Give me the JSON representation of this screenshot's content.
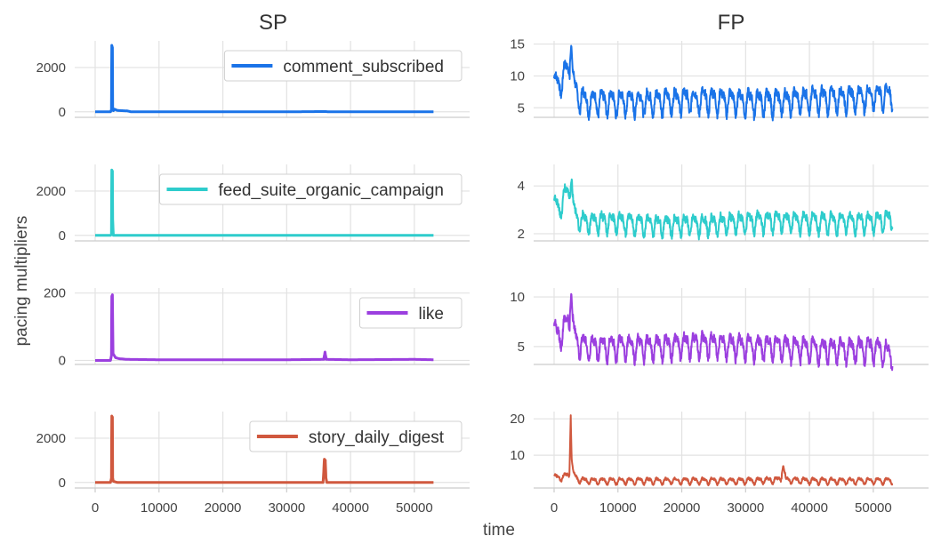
{
  "chart_data": {
    "type": "line",
    "column_titles": [
      "SP",
      "FP"
    ],
    "xlabel": "time",
    "ylabel": "pacing multipliers",
    "xlim": [
      0,
      53500
    ],
    "x_ticks": [
      0,
      10000,
      20000,
      30000,
      40000,
      50000
    ],
    "x_tick_labels": [
      "0",
      "10000",
      "20000",
      "30000",
      "40000",
      "50000"
    ],
    "grid": true,
    "legend_placement": "top-right (left column panels only)",
    "series": [
      {
        "name": "comment_subscribed",
        "color": "#1a73e8",
        "SP": {
          "ylim": [
            -250,
            3200
          ],
          "yticks": [
            0,
            2000
          ],
          "points": [
            [
              0,
              0
            ],
            [
              2400,
              0
            ],
            [
              2550,
              100
            ],
            [
              2600,
              3000
            ],
            [
              2700,
              2900
            ],
            [
              2750,
              150
            ],
            [
              2850,
              50
            ],
            [
              3000,
              120
            ],
            [
              3500,
              60
            ],
            [
              4200,
              50
            ],
            [
              5000,
              40
            ],
            [
              5600,
              0
            ],
            [
              10000,
              0
            ],
            [
              20000,
              0
            ],
            [
              30000,
              0
            ],
            [
              36000,
              12
            ],
            [
              36500,
              0
            ],
            [
              45000,
              0
            ],
            [
              53000,
              0
            ]
          ]
        },
        "FP": {
          "ylim": [
            3.5,
            15.5
          ],
          "yticks": [
            5,
            10,
            15
          ],
          "period": 1440,
          "amplitude": 1.6,
          "points": [
            [
              0,
              9
            ],
            [
              800,
              8.5
            ],
            [
              1600,
              10.5
            ],
            [
              2400,
              11
            ],
            [
              2700,
              15
            ],
            [
              3000,
              9
            ],
            [
              3600,
              7
            ],
            [
              5000,
              6
            ],
            [
              10000,
              6
            ],
            [
              15000,
              6
            ],
            [
              20000,
              6.3
            ],
            [
              25000,
              6.3
            ],
            [
              30000,
              6
            ],
            [
              35000,
              6
            ],
            [
              40000,
              6.4
            ],
            [
              45000,
              6.5
            ],
            [
              50000,
              6.8
            ],
            [
              53000,
              7
            ]
          ]
        }
      },
      {
        "name": "feed_suite_organic_campaign",
        "color": "#2ecccc",
        "SP": {
          "ylim": [
            -250,
            3200
          ],
          "yticks": [
            0,
            2000
          ],
          "points": [
            [
              0,
              0
            ],
            [
              2400,
              0
            ],
            [
              2550,
              50
            ],
            [
              2600,
              2950
            ],
            [
              2700,
              2900
            ],
            [
              2750,
              700
            ],
            [
              2850,
              0
            ],
            [
              10000,
              0
            ],
            [
              20000,
              0
            ],
            [
              30000,
              0
            ],
            [
              40000,
              0
            ],
            [
              53000,
              0
            ]
          ]
        },
        "FP": {
          "ylim": [
            1.7,
            4.9
          ],
          "yticks": [
            2,
            4
          ],
          "period": 1440,
          "amplitude": 0.35,
          "points": [
            [
              0,
              3.3
            ],
            [
              800,
              3.0
            ],
            [
              1600,
              3.6
            ],
            [
              2400,
              3.8
            ],
            [
              2700,
              4.7
            ],
            [
              3000,
              3.0
            ],
            [
              3600,
              2.6
            ],
            [
              5000,
              2.5
            ],
            [
              10000,
              2.5
            ],
            [
              15000,
              2.4
            ],
            [
              20000,
              2.4
            ],
            [
              25000,
              2.4
            ],
            [
              30000,
              2.5
            ],
            [
              35000,
              2.55
            ],
            [
              40000,
              2.5
            ],
            [
              45000,
              2.5
            ],
            [
              50000,
              2.5
            ],
            [
              53000,
              2.6
            ]
          ]
        }
      },
      {
        "name": "like",
        "color": "#9b3fdf",
        "SP": {
          "ylim": [
            -12,
            215
          ],
          "yticks": [
            0,
            200
          ],
          "points": [
            [
              0,
              0
            ],
            [
              2400,
              0
            ],
            [
              2550,
              15
            ],
            [
              2600,
              190
            ],
            [
              2700,
              195
            ],
            [
              2800,
              20
            ],
            [
              3200,
              8
            ],
            [
              3800,
              5
            ],
            [
              5000,
              3
            ],
            [
              10000,
              2
            ],
            [
              20000,
              2
            ],
            [
              30000,
              2
            ],
            [
              35800,
              3
            ],
            [
              36000,
              25
            ],
            [
              36200,
              3
            ],
            [
              40000,
              2
            ],
            [
              50000,
              3
            ],
            [
              53000,
              2
            ]
          ]
        },
        "FP": {
          "ylim": [
            3.2,
            10.9
          ],
          "yticks": [
            5,
            10
          ],
          "period": 1440,
          "amplitude": 1.0,
          "points": [
            [
              0,
              6.5
            ],
            [
              800,
              6
            ],
            [
              1600,
              7
            ],
            [
              2400,
              7.5
            ],
            [
              2700,
              10.5
            ],
            [
              3000,
              6.5
            ],
            [
              3600,
              5.5
            ],
            [
              5000,
              5
            ],
            [
              10000,
              5
            ],
            [
              15000,
              5
            ],
            [
              20000,
              5.2
            ],
            [
              25000,
              5.3
            ],
            [
              30000,
              5
            ],
            [
              35000,
              5
            ],
            [
              40000,
              4.8
            ],
            [
              45000,
              4.7
            ],
            [
              50000,
              4.8
            ],
            [
              52000,
              4.5
            ],
            [
              53000,
              4
            ]
          ]
        }
      },
      {
        "name": "story_daily_digest",
        "color": "#d0583e",
        "SP": {
          "ylim": [
            -250,
            3200
          ],
          "yticks": [
            0,
            2000
          ],
          "points": [
            [
              0,
              0
            ],
            [
              2400,
              0
            ],
            [
              2550,
              200
            ],
            [
              2600,
              3000
            ],
            [
              2700,
              2950
            ],
            [
              2750,
              200
            ],
            [
              2850,
              50
            ],
            [
              3500,
              0
            ],
            [
              10000,
              0
            ],
            [
              20000,
              0
            ],
            [
              30000,
              0
            ],
            [
              35700,
              0
            ],
            [
              35800,
              500
            ],
            [
              35900,
              1050
            ],
            [
              36050,
              1000
            ],
            [
              36150,
              200
            ],
            [
              36300,
              0
            ],
            [
              45000,
              0
            ],
            [
              53000,
              0
            ]
          ]
        },
        "FP": {
          "ylim": [
            1.0,
            22.0
          ],
          "yticks": [
            10,
            20
          ],
          "period": 1440,
          "amplitude": 0.7,
          "points": [
            [
              0,
              4
            ],
            [
              800,
              3.8
            ],
            [
              1600,
              4.2
            ],
            [
              2400,
              4.5
            ],
            [
              2600,
              21
            ],
            [
              2750,
              9
            ],
            [
              3000,
              5
            ],
            [
              3600,
              3.5
            ],
            [
              5000,
              3
            ],
            [
              10000,
              3
            ],
            [
              20000,
              3
            ],
            [
              30000,
              3
            ],
            [
              35500,
              3.3
            ],
            [
              35900,
              7.2
            ],
            [
              36300,
              3.3
            ],
            [
              40000,
              3
            ],
            [
              50000,
              3
            ],
            [
              53000,
              3
            ]
          ]
        }
      }
    ]
  }
}
